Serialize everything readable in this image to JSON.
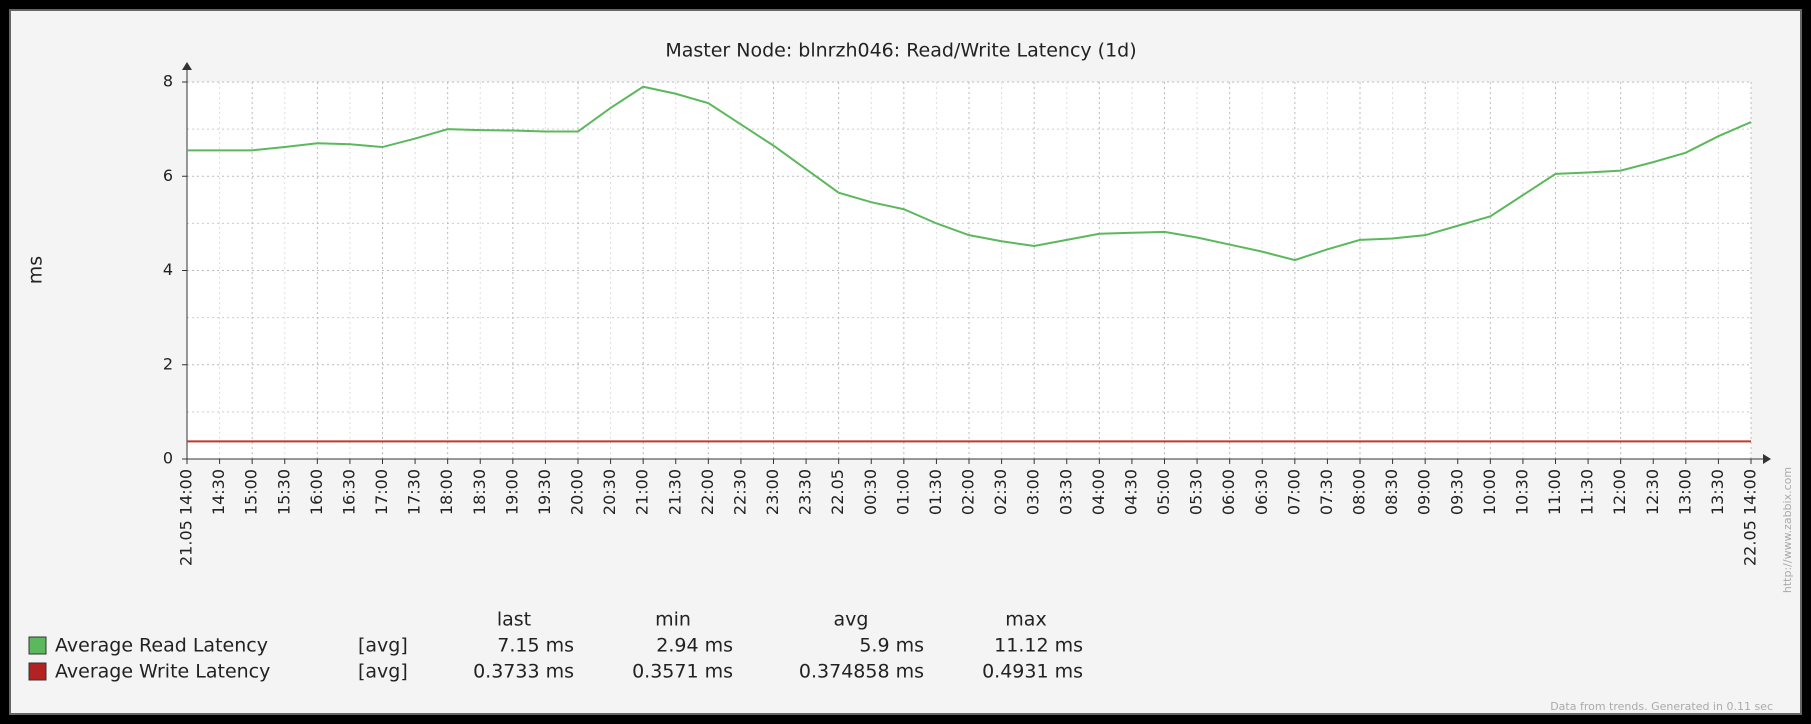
{
  "chart_data": {
    "type": "line",
    "title": "Master Node: blnrzh046: Read/Write Latency  (1d)",
    "y_label": "ms",
    "categories": [
      "21.05 14:00",
      "14:30",
      "15:00",
      "15:30",
      "16:00",
      "16:30",
      "17:00",
      "17:30",
      "18:00",
      "18:30",
      "19:00",
      "19:30",
      "20:00",
      "20:30",
      "21:00",
      "21:30",
      "22:00",
      "22:30",
      "23:00",
      "23:30",
      "22.05",
      "00:30",
      "01:00",
      "01:30",
      "02:00",
      "02:30",
      "03:00",
      "03:30",
      "04:00",
      "04:30",
      "05:00",
      "05:30",
      "06:00",
      "06:30",
      "07:00",
      "07:30",
      "08:00",
      "08:30",
      "09:00",
      "09:30",
      "10:00",
      "10:30",
      "11:00",
      "11:30",
      "12:00",
      "12:30",
      "13:00",
      "13:30",
      "22.05 14:00"
    ],
    "series": [
      {
        "name": "Average Read Latency",
        "color": "#5cb85c",
        "stats": [
          "[avg]",
          "7.15 ms",
          "2.94 ms",
          "5.9 ms",
          "11.12 ms"
        ],
        "values": [
          6.55,
          6.55,
          6.55,
          6.62,
          6.7,
          6.68,
          6.62,
          6.8,
          7.0,
          6.98,
          6.97,
          6.95,
          6.95,
          7.45,
          7.9,
          7.75,
          7.55,
          7.1,
          6.65,
          6.15,
          5.65,
          5.45,
          5.3,
          5.0,
          4.75,
          4.62,
          4.52,
          4.65,
          4.78,
          4.8,
          4.82,
          4.7,
          4.55,
          4.4,
          4.22,
          4.45,
          4.65,
          4.68,
          4.75,
          4.95,
          5.15,
          5.6,
          6.05,
          6.08,
          6.12,
          6.3,
          6.5,
          6.85,
          7.15
        ]
      },
      {
        "name": "Average Write Latency",
        "color": "#c0392b",
        "legend_color": "#b22222",
        "stats": [
          "[avg]",
          "0.3733 ms",
          "0.3571 ms",
          "0.374858 ms",
          "0.4931 ms"
        ],
        "values": [
          0.375,
          0.375,
          0.375,
          0.375,
          0.375,
          0.375,
          0.375,
          0.375,
          0.375,
          0.375,
          0.375,
          0.375,
          0.375,
          0.375,
          0.375,
          0.375,
          0.375,
          0.375,
          0.375,
          0.375,
          0.375,
          0.375,
          0.375,
          0.375,
          0.375,
          0.375,
          0.375,
          0.375,
          0.375,
          0.375,
          0.375,
          0.375,
          0.375,
          0.375,
          0.375,
          0.375,
          0.375,
          0.375,
          0.375,
          0.375,
          0.375,
          0.375,
          0.375,
          0.375,
          0.375,
          0.375,
          0.375,
          0.375,
          0.375
        ]
      }
    ],
    "stats_header": [
      "last",
      "min",
      "avg",
      "max"
    ],
    "ylim": [
      0,
      8
    ],
    "yticks": [
      0,
      2,
      4,
      6,
      8
    ],
    "grid": true,
    "major_label_color": "#a33a3a",
    "footer": "Data from trends. Generated in 0.11 sec",
    "side_text": "http://www.zabbix.com"
  }
}
